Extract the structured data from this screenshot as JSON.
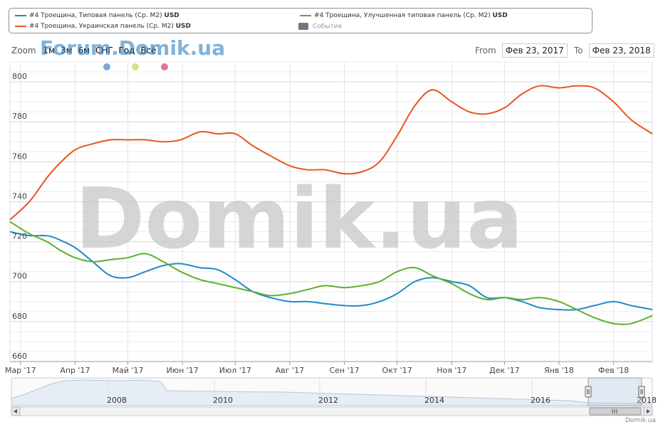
{
  "legend": {
    "items": [
      {
        "label": "#4 Троещина, Типовая панель (Ср. М2)",
        "unit": "USD",
        "color": "#1f8ac8"
      },
      {
        "label": "#4 Троещина, Украинская панель (Ср. М2)",
        "unit": "USD",
        "color": "#e85520"
      },
      {
        "label": "#4 Троещина, Улучшенная типовая панель (Ср. М2)",
        "unit": "USD",
        "color": "#5ab030"
      }
    ],
    "events_label": "События",
    "events_color": "#777777"
  },
  "zoom": {
    "label": "Zoom",
    "buttons": [
      "1м",
      "3м",
      "6м",
      "СНГ",
      "Год",
      "Всё"
    ]
  },
  "range": {
    "from_label": "From",
    "from_value": "Фев 23, 2017",
    "to_label": "To",
    "to_value": "Фев 23, 2018"
  },
  "watermark_small": "Forum.Domik.ua",
  "watermark_big": "Domik.ua",
  "credit": "Domik.ua",
  "markers": [
    {
      "name": "blue-marker",
      "color": "#7ba7d8"
    },
    {
      "name": "yellow-marker",
      "color": "#d8df8e"
    },
    {
      "name": "pink-marker",
      "color": "#d8789a"
    }
  ],
  "navigator": {
    "year_labels": [
      "2008",
      "2010",
      "2012",
      "2014",
      "2016",
      "2018"
    ]
  },
  "chart_data": {
    "type": "line",
    "title": "",
    "xlabel": "",
    "ylabel": "",
    "ylim": [
      660,
      810
    ],
    "yticks": [
      660,
      680,
      700,
      720,
      740,
      760,
      780,
      800
    ],
    "x_tick_labels": [
      "Мар '17",
      "Апр '17",
      "Май '17",
      "Июн '17",
      "Июл '17",
      "Авг '17",
      "Сен '17",
      "Окт '17",
      "Ноя '17",
      "Дек '17",
      "Янв '18",
      "Фев '18"
    ],
    "x_range": [
      "2017-02-23",
      "2018-02-23"
    ],
    "x": [
      "2017-02-23",
      "2017-03-06",
      "2017-03-16",
      "2017-03-23",
      "2017-04-01",
      "2017-04-11",
      "2017-04-21",
      "2017-05-01",
      "2017-05-11",
      "2017-05-21",
      "2017-05-31",
      "2017-06-11",
      "2017-06-21",
      "2017-07-01",
      "2017-07-11",
      "2017-07-21",
      "2017-08-01",
      "2017-08-11",
      "2017-08-21",
      "2017-09-01",
      "2017-09-11",
      "2017-09-21",
      "2017-10-01",
      "2017-10-11",
      "2017-10-21",
      "2017-11-01",
      "2017-11-11",
      "2017-11-21",
      "2017-12-01",
      "2017-12-11",
      "2017-12-21",
      "2018-01-01",
      "2018-01-11",
      "2018-01-21",
      "2018-02-01",
      "2018-02-11",
      "2018-02-23"
    ],
    "series": [
      {
        "name": "#4 Троещина, Типовая панель (Ср. М2)",
        "color": "#1f8ac8",
        "values": [
          725,
          723,
          723,
          721,
          717,
          710,
          703,
          702,
          705,
          708,
          709,
          707,
          706,
          701,
          695,
          692,
          690,
          690,
          689,
          688,
          688,
          690,
          694,
          700,
          702,
          700,
          698,
          692,
          692,
          690,
          687,
          686,
          686,
          688,
          690,
          688,
          686
        ]
      },
      {
        "name": "#4 Троещина, Украинская панель (Ср. М2)",
        "color": "#e85520",
        "values": [
          731,
          740,
          752,
          759,
          766,
          769,
          771,
          771,
          771,
          770,
          771,
          775,
          774,
          774,
          768,
          763,
          758,
          756,
          756,
          754,
          755,
          760,
          773,
          788,
          796,
          790,
          785,
          784,
          787,
          794,
          798,
          797,
          798,
          797,
          790,
          781,
          774
        ]
      },
      {
        "name": "#4 Троещина, Улучшенная типовая панель (Ср. М2)",
        "color": "#5ab030",
        "values": [
          730,
          724,
          720,
          716,
          712,
          710,
          711,
          712,
          714,
          710,
          705,
          701,
          699,
          697,
          695,
          693,
          694,
          696,
          698,
          697,
          698,
          700,
          705,
          707,
          703,
          699,
          694,
          691,
          692,
          691,
          692,
          690,
          686,
          682,
          679,
          679,
          683
        ]
      }
    ]
  }
}
